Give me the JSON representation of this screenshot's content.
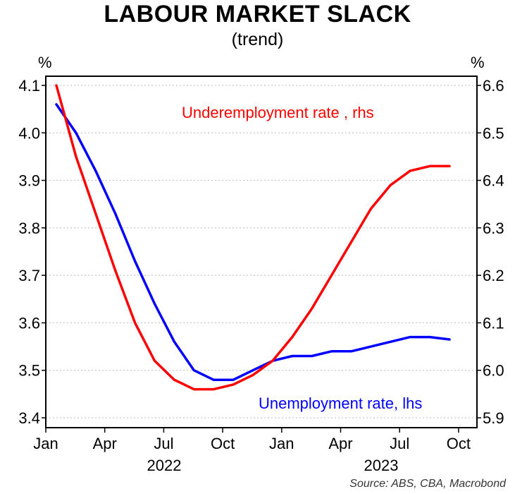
{
  "chart_data": {
    "type": "line",
    "title": "LABOUR MARKET SLACK",
    "subtitle": "(trend)",
    "left_unit": "%",
    "right_unit": "%",
    "left_axis": {
      "min": 3.4,
      "max": 4.1,
      "ticks": [
        "3.4",
        "3.5",
        "3.6",
        "3.7",
        "3.8",
        "3.9",
        "4.0",
        "4.1"
      ]
    },
    "right_axis": {
      "min": 5.9,
      "max": 6.6,
      "ticks": [
        "5.9",
        "6.0",
        "6.1",
        "6.2",
        "6.3",
        "6.4",
        "6.5",
        "6.6"
      ]
    },
    "x_ticks": [
      "Jan",
      "Apr",
      "Jul",
      "Oct",
      "Jan",
      "Apr",
      "Jul",
      "Oct"
    ],
    "x_years": [
      "2022",
      "2023"
    ],
    "x_dates": [
      "2022-01",
      "2022-02",
      "2022-03",
      "2022-04",
      "2022-05",
      "2022-06",
      "2022-07",
      "2022-08",
      "2022-09",
      "2022-10",
      "2022-11",
      "2022-12",
      "2023-01",
      "2023-02",
      "2023-03",
      "2023-04",
      "2023-05",
      "2023-06",
      "2023-07",
      "2023-08",
      "2023-09"
    ],
    "grid": "horizontal dotted",
    "series": [
      {
        "name": "Unemployment rate, lhs",
        "axis": "left",
        "color": "#0000ff",
        "values": [
          4.06,
          4.0,
          3.92,
          3.83,
          3.73,
          3.64,
          3.56,
          3.5,
          3.48,
          3.48,
          3.5,
          3.52,
          3.53,
          3.53,
          3.54,
          3.54,
          3.55,
          3.56,
          3.57,
          3.57,
          3.565
        ]
      },
      {
        "name": "Underemployment rate , rhs",
        "axis": "right",
        "color": "#ff0000",
        "values": [
          6.6,
          6.45,
          6.33,
          6.21,
          6.1,
          6.02,
          5.98,
          5.96,
          5.96,
          5.97,
          5.99,
          6.02,
          6.07,
          6.13,
          6.2,
          6.27,
          6.34,
          6.39,
          6.42,
          6.43,
          6.43
        ]
      }
    ],
    "annotations": {
      "red_label": "Underemployment rate , rhs",
      "blue_label": "Unemployment rate, lhs"
    },
    "source": "Source: ABS, CBA, Macrobond"
  }
}
